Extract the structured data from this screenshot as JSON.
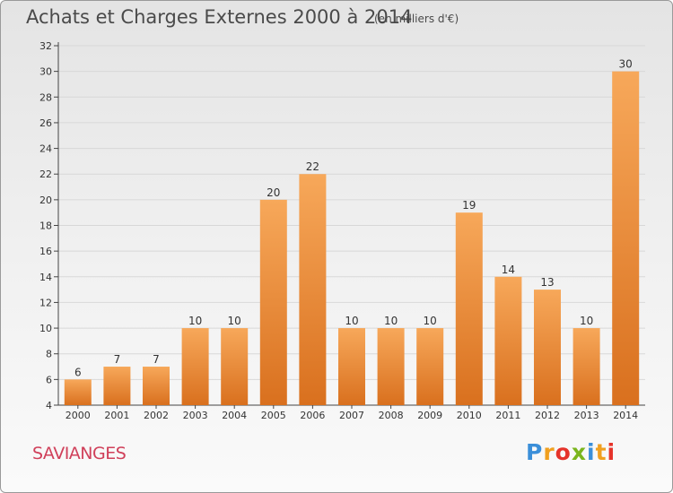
{
  "header": {
    "title": "Achats et Charges Externes 2000 à 2014",
    "unit": "(en milliers d'€)"
  },
  "footer": {
    "commune": "SAVIANGES",
    "logo": {
      "letters": [
        "P",
        "r",
        "o",
        "x",
        "i",
        "t",
        "i"
      ],
      "colors": [
        "#3b8fd9",
        "#f0a020",
        "#e5332a",
        "#7ab51d",
        "#3b8fd9",
        "#f0a020",
        "#e5332a"
      ]
    }
  },
  "colors": {
    "bar_light": "#f7a85a",
    "bar_dark": "#d9701e",
    "grid": "#d8d8d8"
  },
  "chart_data": {
    "type": "bar",
    "title": "Achats et Charges Externes 2000 à 2014",
    "subtitle": "(en milliers d'€)",
    "categories": [
      "2000",
      "2001",
      "2002",
      "2003",
      "2004",
      "2005",
      "2006",
      "2007",
      "2008",
      "2009",
      "2010",
      "2011",
      "2012",
      "2013",
      "2014"
    ],
    "values": [
      6,
      7,
      7,
      10,
      10,
      20,
      22,
      10,
      10,
      10,
      19,
      14,
      13,
      10,
      30
    ],
    "ylim": [
      4,
      32
    ],
    "yticks": [
      4,
      6,
      8,
      10,
      12,
      14,
      16,
      18,
      20,
      22,
      24,
      26,
      28,
      30,
      32
    ],
    "grid": "horizontal",
    "data_labels": true
  }
}
